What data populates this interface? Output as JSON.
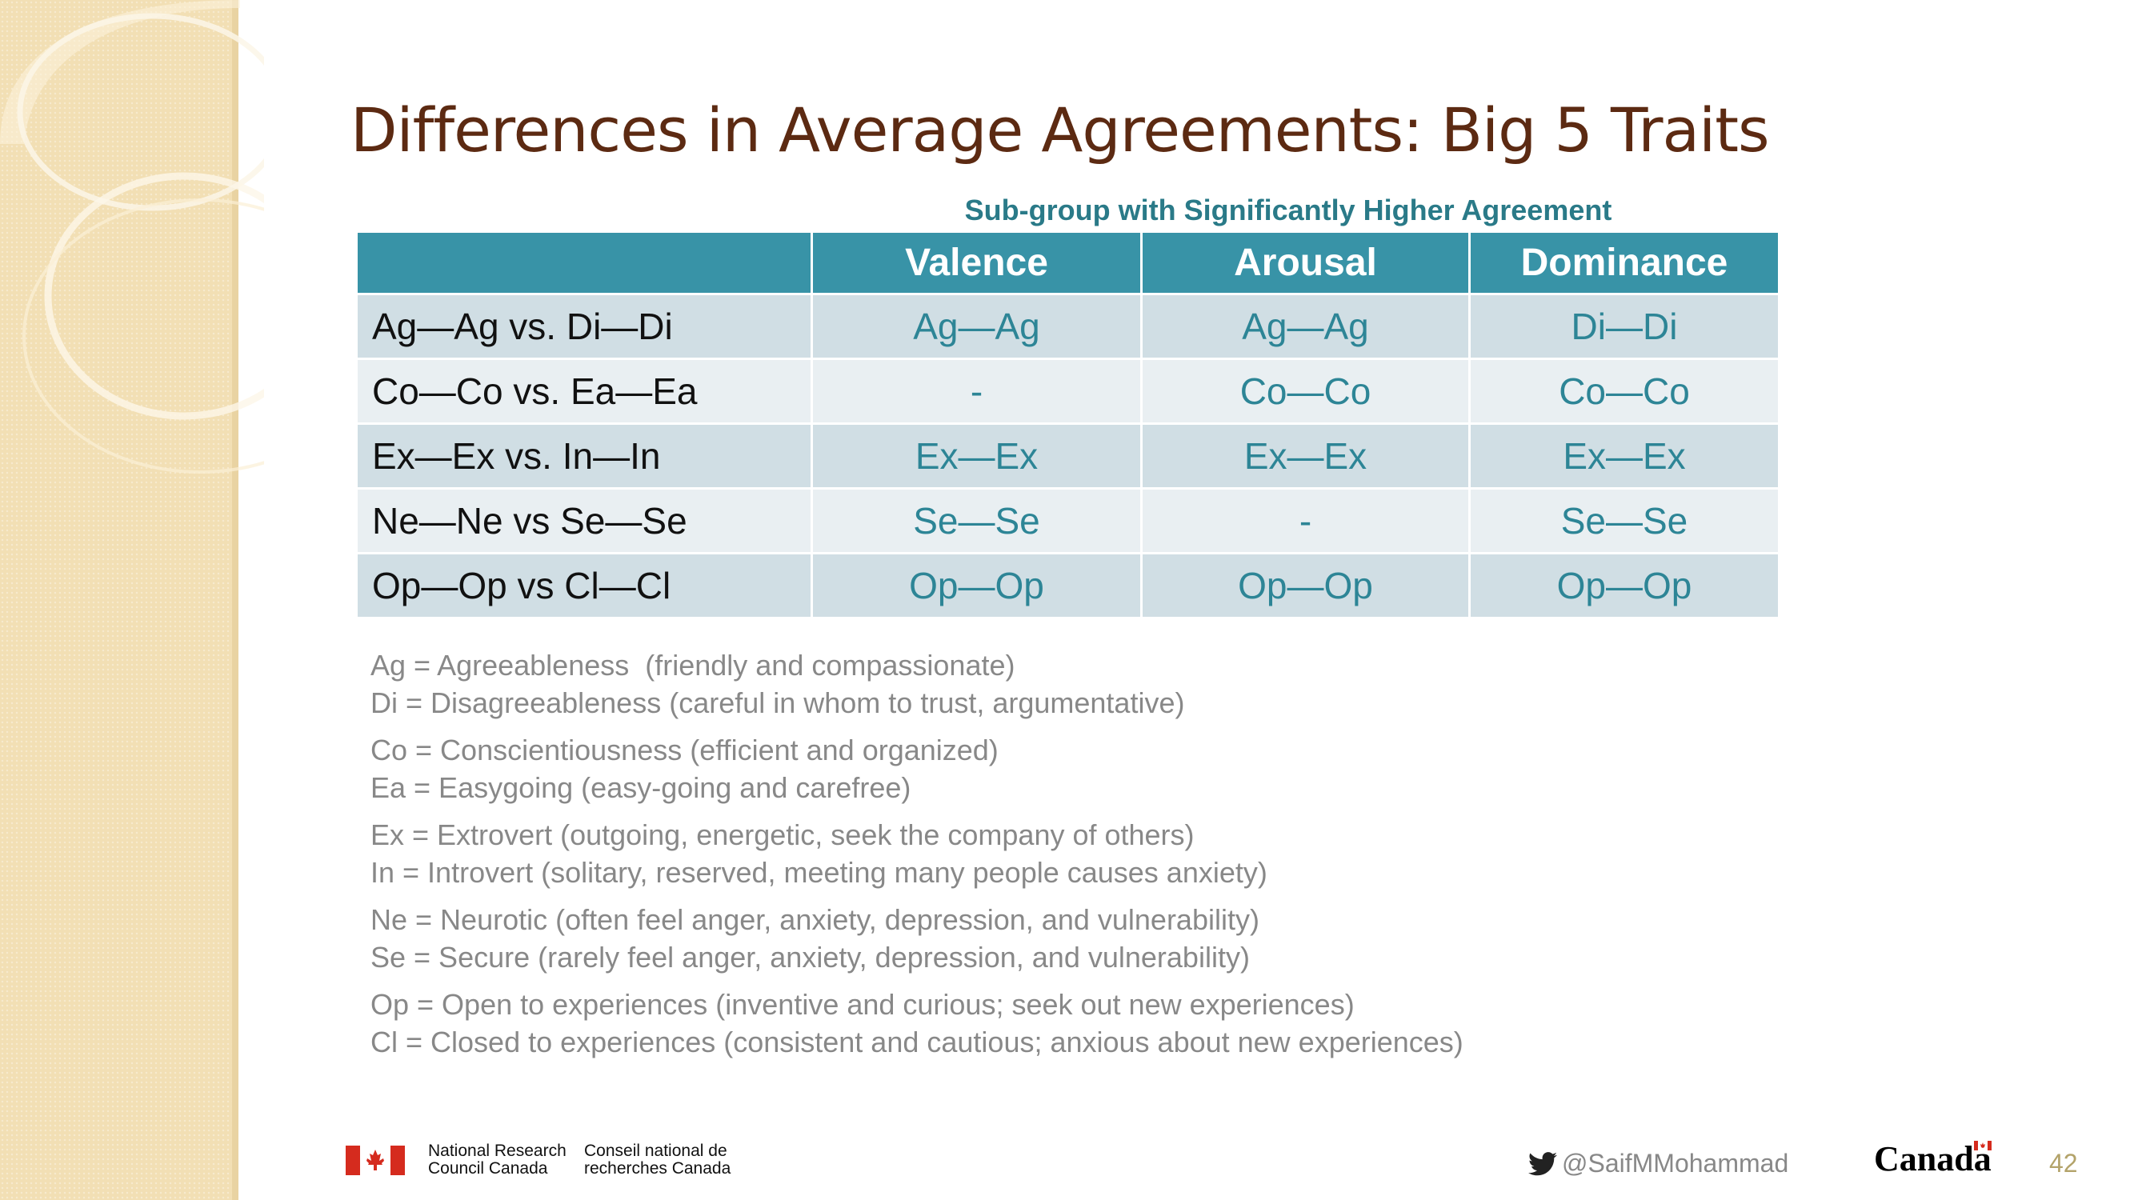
{
  "slide": {
    "title": "Differences in Average Agreements: Big 5 Traits",
    "subheader": "Sub-group with Significantly Higher Agreement"
  },
  "table": {
    "headers": [
      "",
      "Valence",
      "Arousal",
      "Dominance"
    ],
    "rows": [
      {
        "label": "Ag—Ag vs. Di—Di",
        "valence": "Ag—Ag",
        "arousal": "Ag—Ag",
        "dominance": "Di—Di"
      },
      {
        "label": "Co—Co vs. Ea—Ea",
        "valence": "-",
        "arousal": "Co—Co",
        "dominance": "Co—Co"
      },
      {
        "label": "Ex—Ex vs. In—In",
        "valence": "Ex—Ex",
        "arousal": "Ex—Ex",
        "dominance": "Ex—Ex"
      },
      {
        "label": "Ne—Ne vs Se—Se",
        "valence": "Se—Se",
        "arousal": "-",
        "dominance": "Se—Se"
      },
      {
        "label": "Op—Op vs Cl—Cl",
        "valence": "Op—Op",
        "arousal": "Op—Op",
        "dominance": "Op—Op"
      }
    ]
  },
  "legend": {
    "groups": [
      [
        "Ag = Agreeableness  (friendly and compassionate)",
        "Di = Disagreeableness (careful in whom to trust, argumentative)"
      ],
      [
        "Co = Conscientiousness (efficient and organized)",
        "Ea = Easygoing (easy-going and carefree)"
      ],
      [
        "Ex = Extrovert (outgoing, energetic, seek the company of others)",
        "In = Introvert (solitary, reserved, meeting many people causes anxiety)"
      ],
      [
        "Ne = Neurotic (often feel anger, anxiety, depression, and vulnerability)",
        "Se = Secure (rarely feel anger, anxiety, depression, and vulnerability)"
      ],
      [
        "Op = Open to experiences (inventive and curious; seek out new experiences)",
        "Cl = Closed to experiences (consistent and cautious; anxious about new experiences)"
      ]
    ]
  },
  "footer": {
    "nrc_en_line1": "National Research",
    "nrc_en_line2": "Council Canada",
    "nrc_fr_line1": "Conseil national de",
    "nrc_fr_line2": "recherches Canada",
    "twitter_icon": "twitter-bird-icon",
    "twitter_handle": "@SaifMMohammad",
    "canada_wordmark": "Canada",
    "slide_number": "42"
  },
  "colors": {
    "title": "#5c2a12",
    "header_bg": "#3893a7",
    "row_dark": "#d0dee4",
    "row_light": "#e9eff2",
    "cell_text": "#2d8596",
    "subheader": "#2a7a88",
    "legend_text": "#888888",
    "sidebar": "#f2dfb4"
  }
}
